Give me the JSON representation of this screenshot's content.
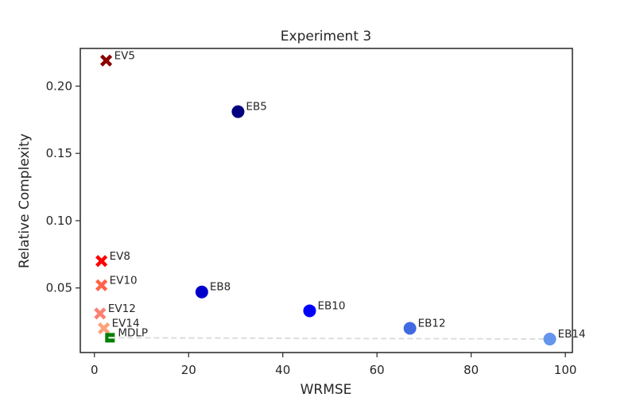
{
  "chart_data": {
    "type": "scatter",
    "title": "Experiment 3",
    "xlabel": "WRMSE",
    "ylabel": "Relative Complexity",
    "xlim": [
      -3,
      101.5
    ],
    "ylim": [
      0.002,
      0.228
    ],
    "xticks": [
      0,
      20,
      40,
      60,
      80,
      100
    ],
    "yticks": [
      0.05,
      0.1,
      0.15,
      0.2
    ],
    "xtick_labels": [
      "0",
      "20",
      "40",
      "60",
      "80",
      "100"
    ],
    "ytick_labels": [
      "0.05",
      "0.10",
      "0.15",
      "0.20"
    ],
    "grid": false,
    "points": [
      {
        "label": "EV5",
        "x": 2.5,
        "y": 0.219,
        "marker": "x",
        "color": "#8b0000"
      },
      {
        "label": "EB5",
        "x": 30.5,
        "y": 0.181,
        "marker": "circle",
        "color": "#000080"
      },
      {
        "label": "EV8",
        "x": 1.5,
        "y": 0.07,
        "marker": "x",
        "color": "#ff0000"
      },
      {
        "label": "EV10",
        "x": 1.5,
        "y": 0.052,
        "marker": "x",
        "color": "#ff6347"
      },
      {
        "label": "EB8",
        "x": 22.8,
        "y": 0.047,
        "marker": "circle",
        "color": "#0000cd"
      },
      {
        "label": "EB10",
        "x": 45.7,
        "y": 0.033,
        "marker": "circle",
        "color": "#0000ff"
      },
      {
        "label": "EV12",
        "x": 1.2,
        "y": 0.031,
        "marker": "x",
        "color": "#fa8072"
      },
      {
        "label": "EB12",
        "x": 67.0,
        "y": 0.02,
        "marker": "circle",
        "color": "#4169e1"
      },
      {
        "label": "EV14",
        "x": 2.0,
        "y": 0.02,
        "marker": "x",
        "color": "#ffa07a"
      },
      {
        "label": "MDLP",
        "x": 3.3,
        "y": 0.013,
        "marker": "square",
        "color": "#008000"
      },
      {
        "label": "EB14",
        "x": 96.7,
        "y": 0.012,
        "marker": "circle",
        "color": "#6495ed"
      }
    ],
    "pareto_line": {
      "from": "MDLP",
      "to": "EB14",
      "color": "#dddddd",
      "style": "dashed"
    }
  }
}
